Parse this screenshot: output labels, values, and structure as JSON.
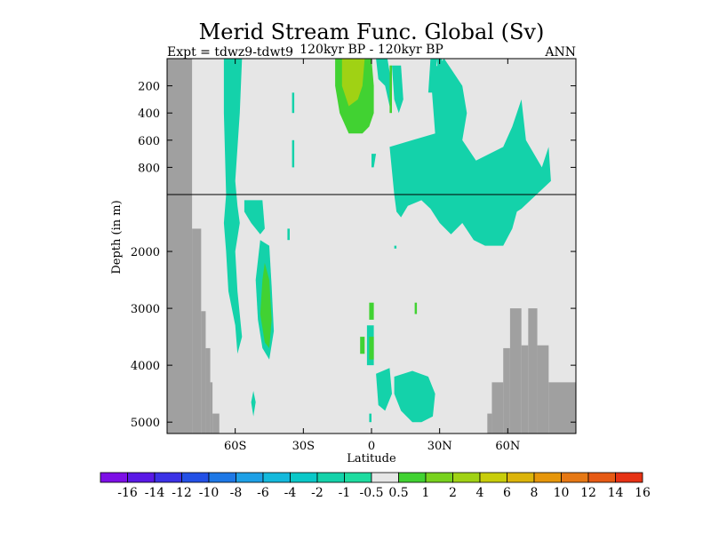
{
  "chart_data": {
    "type": "heatmap",
    "title": "Merid Stream Func. Global (Sv)",
    "subtitle_left": "Expt = tdwz9-tdwt9",
    "subtitle_center": "120kyr BP - 120kyr BP",
    "subtitle_right": "ANN",
    "xlabel": "Latitude",
    "ylabel": "Depth (in m)",
    "xlim": [
      -90,
      90
    ],
    "ylim_depth": [
      5200,
      0
    ],
    "split_depth": 1000,
    "x_ticks": [
      {
        "value": -60,
        "label": "60S"
      },
      {
        "value": -30,
        "label": "30S"
      },
      {
        "value": 0,
        "label": "0"
      },
      {
        "value": 30,
        "label": "30N"
      },
      {
        "value": 60,
        "label": "60N"
      }
    ],
    "y_ticks_upper": [
      {
        "value": 200,
        "label": "200"
      },
      {
        "value": 400,
        "label": "400"
      },
      {
        "value": 600,
        "label": "600"
      },
      {
        "value": 800,
        "label": "800"
      }
    ],
    "y_ticks_lower": [
      {
        "value": 2000,
        "label": "2000"
      },
      {
        "value": 3000,
        "label": "3000"
      },
      {
        "value": 4000,
        "label": "4000"
      },
      {
        "value": 5000,
        "label": "5000"
      }
    ],
    "colorbar": {
      "labels": [
        "-16",
        "-14",
        "-12",
        "-10",
        "-8",
        "-6",
        "-4",
        "-2",
        "-1",
        "-0.5",
        "0.5",
        "1",
        "2",
        "4",
        "6",
        "8",
        "10",
        "12",
        "14",
        "16"
      ],
      "colors": [
        "#7d0fe6",
        "#5a19e6",
        "#3c32e6",
        "#2350e6",
        "#1e78e6",
        "#1ea0e6",
        "#14b9dc",
        "#0ac8c8",
        "#14d2aa",
        "#1edca0",
        "#e6e6e6",
        "#41d232",
        "#78d21e",
        "#a0d214",
        "#c8cd0a",
        "#dcb40a",
        "#e6960a",
        "#e67814",
        "#e65a14",
        "#e63214"
      ],
      "neutral_index": 10
    },
    "colors": {
      "background": "#e6e6e6",
      "land": "#a0a0a0",
      "teal": "#1edca0",
      "cyan_green": "#14d2aa",
      "green": "#41d232",
      "yellow_green": "#a0d214",
      "light_green": "#78d21e"
    },
    "land_blocks": [
      {
        "x0": -90,
        "x1": -79,
        "z0": 0,
        "z1": 5200
      },
      {
        "x0": -79,
        "x1": -75,
        "z0": 1600,
        "z1": 5200
      },
      {
        "x0": -75,
        "x1": -73,
        "z0": 3050,
        "z1": 5200
      },
      {
        "x0": -73,
        "x1": -71,
        "z0": 3700,
        "z1": 5200
      },
      {
        "x0": -71,
        "x1": -70,
        "z0": 4300,
        "z1": 5200
      },
      {
        "x0": -70,
        "x1": -67,
        "z0": 4850,
        "z1": 5200
      },
      {
        "x0": 51,
        "x1": 53,
        "z0": 4850,
        "z1": 5200
      },
      {
        "x0": 53,
        "x1": 58,
        "z0": 4300,
        "z1": 5200
      },
      {
        "x0": 58,
        "x1": 61,
        "z0": 3700,
        "z1": 5200
      },
      {
        "x0": 61,
        "x1": 66,
        "z0": 3000,
        "z1": 5200
      },
      {
        "x0": 66,
        "x1": 69,
        "z0": 3650,
        "z1": 5200
      },
      {
        "x0": 69,
        "x1": 73,
        "z0": 3000,
        "z1": 5200
      },
      {
        "x0": 73,
        "x1": 78,
        "z0": 3650,
        "z1": 5200
      },
      {
        "x0": 78,
        "x1": 90,
        "z0": 4300,
        "z1": 5200
      }
    ],
    "contour_regions": [
      {
        "color": "#14d2aa",
        "points": [
          [
            -65,
            0
          ],
          [
            -57,
            0
          ],
          [
            -58,
            400
          ],
          [
            -60,
            900
          ],
          [
            -59,
            1200
          ],
          [
            -58,
            1500
          ],
          [
            -60,
            2000
          ],
          [
            -59,
            2700
          ],
          [
            -57,
            3500
          ],
          [
            -59,
            3800
          ],
          [
            -60,
            3300
          ],
          [
            -63,
            2700
          ],
          [
            -64,
            2000
          ],
          [
            -65,
            1500
          ],
          [
            -64,
            1000
          ],
          [
            -65,
            400
          ]
        ]
      },
      {
        "color": "#14d2aa",
        "points": [
          [
            -56,
            1100
          ],
          [
            -48,
            1100
          ],
          [
            -47,
            1600
          ],
          [
            -49,
            1700
          ],
          [
            -53,
            1500
          ],
          [
            -56,
            1300
          ]
        ]
      },
      {
        "color": "#14d2aa",
        "points": [
          [
            -49,
            1800
          ],
          [
            -45,
            1900
          ],
          [
            -44,
            2600
          ],
          [
            -43,
            3400
          ],
          [
            -45,
            3900
          ],
          [
            -48,
            3700
          ],
          [
            -50,
            3200
          ],
          [
            -51,
            2500
          ]
        ]
      },
      {
        "color": "#41d232",
        "points": [
          [
            -47,
            2200
          ],
          [
            -45,
            2500
          ],
          [
            -44,
            3200
          ],
          [
            -45,
            3700
          ],
          [
            -47,
            3600
          ],
          [
            -49,
            3100
          ],
          [
            -48,
            2500
          ]
        ]
      },
      {
        "color": "#14d2aa",
        "points": [
          [
            -52,
            4450
          ],
          [
            -51,
            4650
          ],
          [
            -52,
            4900
          ],
          [
            -53,
            4650
          ]
        ]
      },
      {
        "color": "#14d2aa",
        "points": [
          [
            -35,
            250
          ],
          [
            -34,
            250
          ],
          [
            -34,
            400
          ],
          [
            -35,
            400
          ]
        ]
      },
      {
        "color": "#14d2aa",
        "points": [
          [
            -35,
            600
          ],
          [
            -34,
            600
          ],
          [
            -34,
            800
          ],
          [
            -35,
            800
          ]
        ]
      },
      {
        "color": "#14d2aa",
        "points": [
          [
            -37,
            1600
          ],
          [
            -36,
            1600
          ],
          [
            -36,
            1800
          ],
          [
            -37,
            1800
          ]
        ]
      },
      {
        "color": "#41d232",
        "points": [
          [
            -16,
            0
          ],
          [
            0,
            0
          ],
          [
            1,
            200
          ],
          [
            1,
            400
          ],
          [
            -1,
            500
          ],
          [
            -4,
            550
          ],
          [
            -10,
            550
          ],
          [
            -14,
            400
          ],
          [
            -16,
            200
          ]
        ]
      },
      {
        "color": "#a0d214",
        "points": [
          [
            -13,
            0
          ],
          [
            -3,
            0
          ],
          [
            -4,
            200
          ],
          [
            -6,
            300
          ],
          [
            -10,
            350
          ],
          [
            -13,
            200
          ]
        ]
      },
      {
        "color": "#14d2aa",
        "points": [
          [
            2,
            0
          ],
          [
            7,
            0
          ],
          [
            8,
            100
          ],
          [
            9,
            300
          ],
          [
            8,
            350
          ],
          [
            6,
            200
          ],
          [
            3,
            150
          ]
        ]
      },
      {
        "color": "#41d232",
        "points": [
          [
            8,
            50
          ],
          [
            9,
            50
          ],
          [
            9,
            400
          ],
          [
            8,
            400
          ]
        ]
      },
      {
        "color": "#14d2aa",
        "points": [
          [
            26,
            0
          ],
          [
            29,
            0
          ],
          [
            27,
            250
          ],
          [
            25,
            250
          ]
        ]
      },
      {
        "color": "#14d2aa",
        "points": [
          [
            10,
            1900
          ],
          [
            11,
            1900
          ],
          [
            11,
            1950
          ],
          [
            10,
            1950
          ]
        ]
      },
      {
        "color": "#14d2aa",
        "points": [
          [
            9,
            50
          ],
          [
            13,
            50
          ],
          [
            14,
            300
          ],
          [
            12,
            400
          ],
          [
            10,
            300
          ]
        ]
      },
      {
        "color": "#14d2aa",
        "points": [
          [
            8,
            650
          ],
          [
            18,
            600
          ],
          [
            28,
            550
          ],
          [
            26,
            100
          ],
          [
            32,
            0
          ],
          [
            36,
            100
          ],
          [
            40,
            200
          ],
          [
            42,
            400
          ],
          [
            40,
            600
          ],
          [
            46,
            750
          ],
          [
            58,
            650
          ],
          [
            62,
            500
          ],
          [
            66,
            300
          ],
          [
            68,
            600
          ],
          [
            75,
            800
          ],
          [
            78,
            650
          ],
          [
            79,
            900
          ],
          [
            70,
            1100
          ],
          [
            66,
            1250
          ],
          [
            64,
            1300
          ],
          [
            62,
            1600
          ],
          [
            58,
            1900
          ],
          [
            50,
            1900
          ],
          [
            45,
            1800
          ],
          [
            40,
            1500
          ],
          [
            35,
            1700
          ],
          [
            30,
            1500
          ],
          [
            26,
            1250
          ],
          [
            22,
            1100
          ],
          [
            16,
            1200
          ],
          [
            13,
            1400
          ],
          [
            11,
            1300
          ],
          [
            10,
            1000
          ]
        ]
      },
      {
        "color": "#14d2aa",
        "points": [
          [
            0,
            700
          ],
          [
            2,
            700
          ],
          [
            1,
            800
          ],
          [
            0,
            800
          ]
        ]
      },
      {
        "color": "#14d2aa",
        "points": [
          [
            29,
            0
          ],
          [
            31,
            0
          ],
          [
            31,
            250
          ],
          [
            29,
            250
          ]
        ]
      },
      {
        "color": "#41d232",
        "points": [
          [
            -1,
            2900
          ],
          [
            1,
            2900
          ],
          [
            1,
            3200
          ],
          [
            -1,
            3200
          ]
        ]
      },
      {
        "color": "#41d232",
        "points": [
          [
            -5,
            3500
          ],
          [
            -3,
            3500
          ],
          [
            -3,
            3800
          ],
          [
            -5,
            3800
          ]
        ]
      },
      {
        "color": "#14d2aa",
        "points": [
          [
            -2,
            3300
          ],
          [
            1,
            3300
          ],
          [
            1,
            4000
          ],
          [
            -2,
            4000
          ]
        ]
      },
      {
        "color": "#41d232",
        "points": [
          [
            -1,
            3500
          ],
          [
            1,
            3500
          ],
          [
            1,
            3900
          ],
          [
            -1,
            3900
          ]
        ]
      },
      {
        "color": "#41d232",
        "points": [
          [
            19,
            2900
          ],
          [
            20,
            2900
          ],
          [
            20,
            3100
          ],
          [
            19,
            3100
          ]
        ]
      },
      {
        "color": "#14d2aa",
        "points": [
          [
            2,
            4150
          ],
          [
            8,
            4050
          ],
          [
            9,
            4500
          ],
          [
            6,
            4800
          ],
          [
            3,
            4700
          ]
        ]
      },
      {
        "color": "#14d2aa",
        "points": [
          [
            10,
            4200
          ],
          [
            18,
            4100
          ],
          [
            25,
            4200
          ],
          [
            28,
            4500
          ],
          [
            27,
            4900
          ],
          [
            22,
            5000
          ],
          [
            18,
            5000
          ],
          [
            13,
            4800
          ],
          [
            10,
            4500
          ]
        ]
      },
      {
        "color": "#14d2aa",
        "points": [
          [
            -1,
            4850
          ],
          [
            0,
            4850
          ],
          [
            0,
            5000
          ],
          [
            -1,
            5000
          ]
        ]
      }
    ]
  }
}
